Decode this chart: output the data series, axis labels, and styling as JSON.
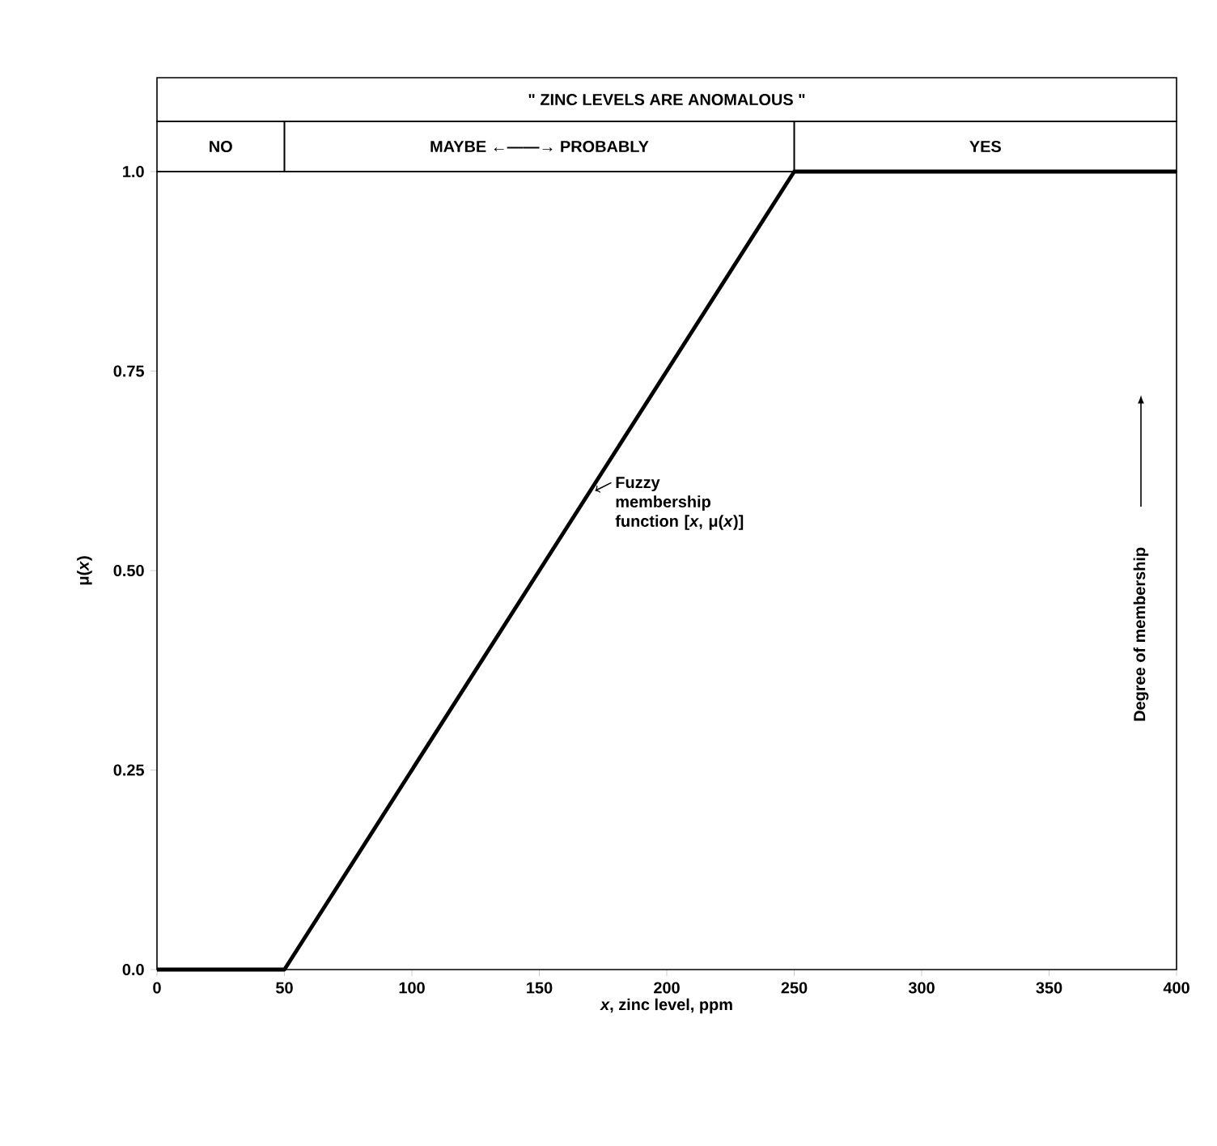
{
  "chart_data": {
    "type": "line",
    "title": "\" ZINC LEVELS ARE ANOMALOUS \"",
    "xlabel": "*x*, zinc level, ppm",
    "ylabel": "μ(*x*)",
    "x": [
      0,
      50,
      250,
      400
    ],
    "values": [
      0,
      0,
      1,
      1
    ],
    "color": "#000000",
    "xlim": [
      0,
      400
    ],
    "ylim": [
      0,
      1
    ],
    "xticks": [
      0,
      50,
      100,
      150,
      200,
      250,
      300,
      350,
      400
    ],
    "yticks": [
      {
        "value": 0,
        "label": "0.0"
      },
      0.25,
      {
        "value": 0.5,
        "label": "0.50"
      },
      0.75,
      {
        "value": 1,
        "label": "1.0"
      }
    ],
    "annotations": [
      {
        "text": "Fuzzy membership function [*x*, μ(*x*)]",
        "x": 170,
        "y": 0.6
      },
      "Degree of membership",
      "NO",
      "MAYBE ←——→ PROBABLY",
      "YES"
    ],
    "grid": false
  }
}
